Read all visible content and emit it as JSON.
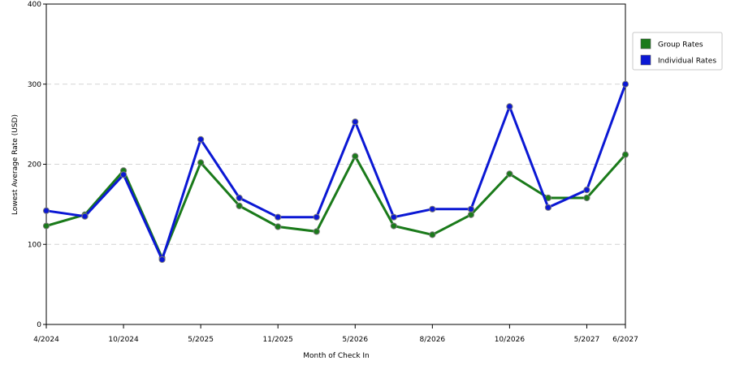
{
  "chart_data": {
    "type": "line",
    "xlabel": "Month of Check In",
    "ylabel": "Lowest Average Rate (USD)",
    "ylim": [
      0,
      400
    ],
    "yticks": [
      0,
      100,
      200,
      300,
      400
    ],
    "grid": "horizontal dashed",
    "legend_position": "top-right",
    "x_tick_labels": [
      "4/2024",
      "10/2024",
      "5/2025",
      "11/2025",
      "5/2026",
      "8/2026",
      "10/2026",
      "5/2027",
      "6/2027"
    ],
    "x_tick_indices": [
      0,
      2,
      4,
      6,
      8,
      10,
      12,
      14,
      15
    ],
    "x_point_count": 16,
    "series": [
      {
        "name": "Group Rates",
        "color": "#1a7a1a",
        "values": [
          123,
          137,
          192,
          83,
          202,
          148,
          122,
          116,
          210,
          123,
          112,
          137,
          188,
          158,
          158,
          212
        ]
      },
      {
        "name": "Individual Rates",
        "color": "#0b18d4",
        "values": [
          142,
          135,
          187,
          81,
          231,
          158,
          134,
          134,
          253,
          134,
          144,
          144,
          272,
          146,
          168,
          300
        ]
      }
    ]
  }
}
